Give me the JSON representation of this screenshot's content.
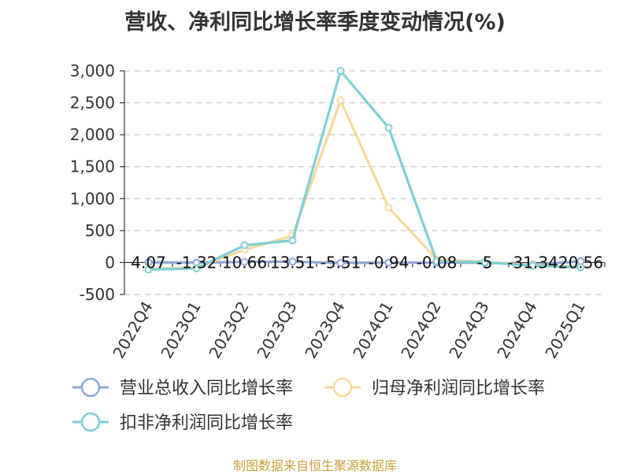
{
  "title": "营收、净利同比增长率季度变动情况(%)",
  "footer": "制图数据来自恒生聚源数据库",
  "chart_data": {
    "type": "line",
    "categories": [
      "2022Q4",
      "2023Q1",
      "2023Q2",
      "2023Q3",
      "2023Q4",
      "2024Q1",
      "2024Q2",
      "2024Q3",
      "2024Q4",
      "2025Q1"
    ],
    "series": [
      {
        "name": "营业总收入同比增长率",
        "color": "#8fa8d8",
        "values": [
          4.07,
          -1.32,
          10.66,
          13.51,
          -5.51,
          -0.94,
          -0.08,
          -5,
          -31.34,
          20.56
        ],
        "labels": [
          "4.07",
          "-1.32",
          "10.66",
          "13.51",
          "-5.51",
          "-0.94",
          "-0.08",
          "-5",
          "-31.34",
          "20.56"
        ]
      },
      {
        "name": "归母净利润同比增长率",
        "color": "#f7d99a",
        "values": [
          -95,
          -80,
          200,
          420,
          2540,
          860,
          50,
          10,
          -40,
          -70
        ]
      },
      {
        "name": "扣非净利润同比增长率",
        "color": "#7ecfd4",
        "values": [
          -110,
          -90,
          270,
          345,
          3000,
          2110,
          20,
          5,
          -50,
          -75
        ]
      }
    ],
    "yticks": [
      "-500",
      "0",
      "500",
      "1,000",
      "1,500",
      "2,000",
      "2,500",
      "3,000"
    ],
    "ylim": [
      -500,
      3000
    ],
    "grid": true,
    "legend_position": "bottom"
  }
}
